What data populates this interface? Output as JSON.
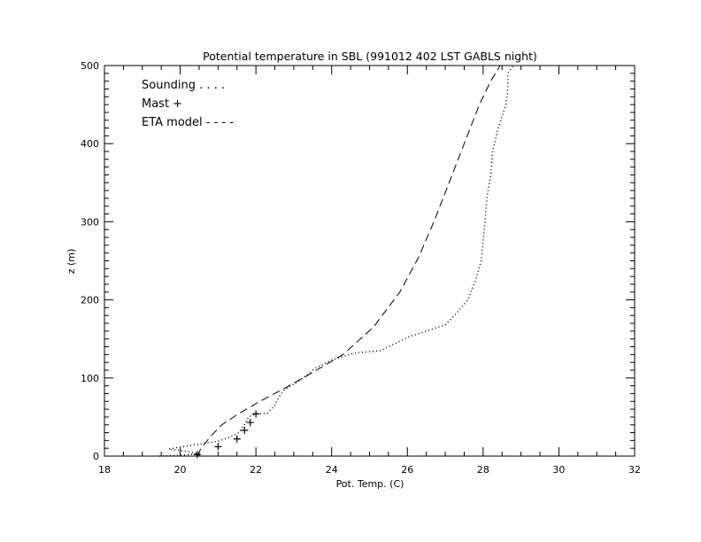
{
  "chart_data": {
    "type": "line",
    "title": "Potential temperature in SBL (991012 402 LST GABLS night)",
    "xlabel": "Pot. Temp. (C)",
    "ylabel": "z (m)",
    "xlim": [
      18,
      32
    ],
    "ylim": [
      0,
      500
    ],
    "x_ticks": [
      18,
      20,
      22,
      24,
      26,
      28,
      30,
      32
    ],
    "y_ticks": [
      0,
      100,
      200,
      300,
      400,
      500
    ],
    "grid": false,
    "legend_position": "top-left",
    "legend_text_only": true,
    "series": [
      {
        "name": "Sounding . . . .",
        "style": "dotted",
        "points": [
          [
            19.45,
            0
          ],
          [
            20.0,
            1
          ],
          [
            20.45,
            3
          ],
          [
            20.2,
            6
          ],
          [
            19.7,
            9
          ],
          [
            20.3,
            14
          ],
          [
            21.0,
            19
          ],
          [
            21.3,
            24
          ],
          [
            21.55,
            30
          ],
          [
            21.7,
            40
          ],
          [
            21.8,
            50
          ],
          [
            22.0,
            54
          ],
          [
            22.3,
            55
          ],
          [
            22.5,
            65
          ],
          [
            22.6,
            75
          ],
          [
            22.75,
            85
          ],
          [
            23.1,
            95
          ],
          [
            23.3,
            102
          ],
          [
            23.55,
            112
          ],
          [
            24.0,
            123
          ],
          [
            24.6,
            132
          ],
          [
            25.3,
            135
          ],
          [
            26.0,
            152
          ],
          [
            26.5,
            160
          ],
          [
            27.0,
            168
          ],
          [
            27.3,
            183
          ],
          [
            27.6,
            200
          ],
          [
            27.8,
            225
          ],
          [
            27.95,
            250
          ],
          [
            28.0,
            275
          ],
          [
            28.05,
            300
          ],
          [
            28.1,
            330
          ],
          [
            28.2,
            360
          ],
          [
            28.25,
            390
          ],
          [
            28.4,
            420
          ],
          [
            28.6,
            450
          ],
          [
            28.65,
            470
          ],
          [
            28.65,
            490
          ],
          [
            28.8,
            500
          ]
        ]
      },
      {
        "name": "Mast +",
        "style": "plus",
        "points": [
          [
            20.45,
            2
          ],
          [
            21.0,
            12
          ],
          [
            21.5,
            22
          ],
          [
            21.7,
            33
          ],
          [
            21.85,
            43
          ],
          [
            22.0,
            54
          ]
        ]
      },
      {
        "name": "ETA model - - - -",
        "style": "dashed",
        "points": [
          [
            20.45,
            0
          ],
          [
            20.55,
            10
          ],
          [
            20.8,
            25
          ],
          [
            21.1,
            40
          ],
          [
            21.5,
            53
          ],
          [
            22.1,
            70
          ],
          [
            22.8,
            88
          ],
          [
            23.5,
            107
          ],
          [
            24.3,
            130
          ],
          [
            25.1,
            165
          ],
          [
            25.8,
            210
          ],
          [
            26.3,
            255
          ],
          [
            26.7,
            300
          ],
          [
            27.1,
            350
          ],
          [
            27.5,
            400
          ],
          [
            27.9,
            450
          ],
          [
            28.2,
            480
          ],
          [
            28.45,
            500
          ]
        ]
      }
    ]
  }
}
